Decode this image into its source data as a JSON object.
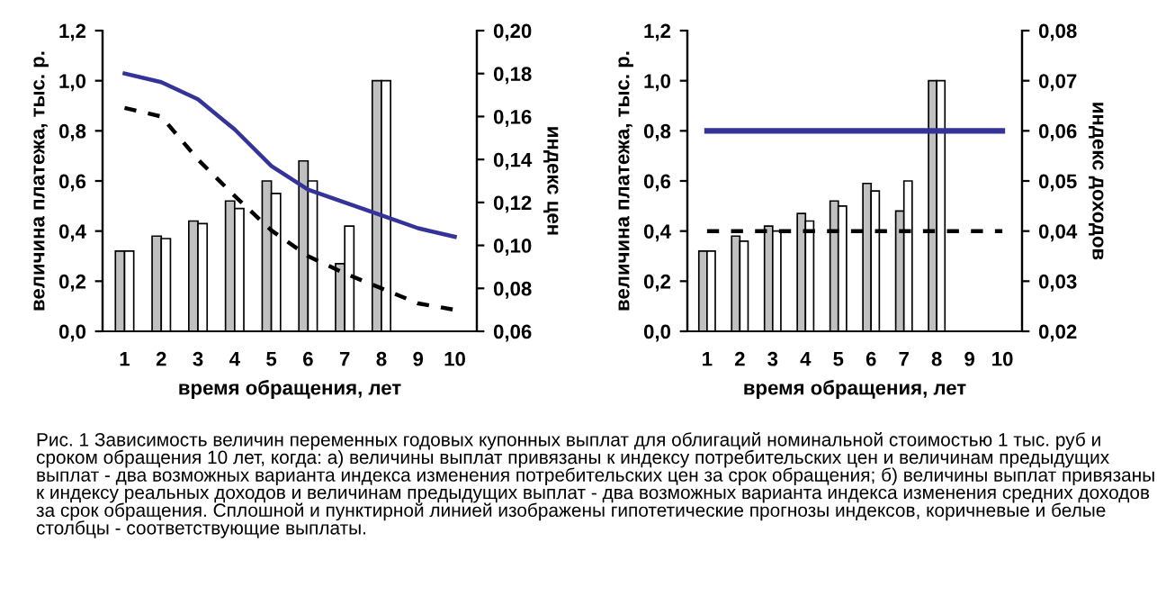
{
  "chart_data": [
    {
      "type": "bar",
      "categories": [
        "1",
        "2",
        "3",
        "4",
        "5",
        "6",
        "7",
        "8",
        "9",
        "10"
      ],
      "xlabel": "время обращения, лет",
      "ylabel": "величина платежа, тыс. р.",
      "y2label": "индекс цен",
      "series": [
        {
          "color": "#c0c0c0",
          "values": [
            0.32,
            0.38,
            0.44,
            0.52,
            0.6,
            0.68,
            0.27,
            1.0,
            null,
            null
          ]
        },
        {
          "color": "#ffffff",
          "values": [
            0.32,
            0.37,
            0.43,
            0.49,
            0.55,
            0.6,
            0.42,
            1.0,
            null,
            null
          ]
        },
        {
          "type": "line",
          "axis": "y2",
          "color": "#333399",
          "line_style": "solid",
          "values": [
            0.18,
            0.176,
            0.168,
            0.154,
            0.137,
            0.126,
            0.12,
            0.114,
            0.108,
            0.104
          ]
        },
        {
          "type": "line",
          "axis": "y2",
          "color": "#000000",
          "line_style": "dashed",
          "values": [
            0.164,
            0.16,
            0.14,
            0.123,
            0.107,
            0.095,
            0.087,
            0.08,
            0.073,
            0.07
          ]
        }
      ],
      "ylim": [
        0,
        1.2
      ],
      "yticks": [
        {
          "value": 0,
          "label": "0,0"
        },
        {
          "value": 0.2,
          "label": "0,2"
        },
        {
          "value": 0.4,
          "label": "0,4"
        },
        {
          "value": 0.6,
          "label": "0,6"
        },
        {
          "value": 0.8,
          "label": "0,8"
        },
        {
          "value": 1.0,
          "label": "1,0"
        },
        {
          "value": 1.2,
          "label": "1,2"
        }
      ],
      "y2lim": [
        0.06,
        0.2
      ],
      "y2ticks": [
        {
          "value": 0.06,
          "label": "0,06"
        },
        {
          "value": 0.08,
          "label": "0,08"
        },
        {
          "value": 0.1,
          "label": "0,10"
        },
        {
          "value": 0.12,
          "label": "0,12"
        },
        {
          "value": 0.14,
          "label": "0,14"
        },
        {
          "value": 0.16,
          "label": "0,16"
        },
        {
          "value": 0.18,
          "label": "0,18"
        },
        {
          "value": 0.2,
          "label": "0,20"
        }
      ],
      "grid": false,
      "legend": false,
      "annotations": [
        "Рис. 1 Зависимость величин переменных годовых купонных выплат для облигаций номинальной стоимостью 1 тыс. руб и сроком обращения 10 лет, когда: а) величины выплат привязаны к индексу потребительских цен и величинам предыдущих выплат - два возможных варианта индекса изменения потребительских цен за срок обращения; б) величины выплат привязаны к индексу реальных доходов и величинам предыдущих выплат - два возможных варианта индекса изменения средних доходов за срок обращения. Сплошной и пунктирной линией изображены гипотетические прогнозы индексов, коричневые и белые столбцы - соответствующие выплаты."
      ]
    },
    {
      "type": "bar",
      "categories": [
        "1",
        "2",
        "3",
        "4",
        "5",
        "6",
        "7",
        "8",
        "9",
        "10"
      ],
      "xlabel": "время обращения, лет",
      "ylabel": "величина платежа, тыс. р.",
      "y2label": "индекс доходов",
      "series": [
        {
          "color": "#c0c0c0",
          "values": [
            0.32,
            0.38,
            0.42,
            0.47,
            0.52,
            0.59,
            0.48,
            1.0,
            null,
            null
          ]
        },
        {
          "color": "#ffffff",
          "values": [
            0.32,
            0.36,
            0.4,
            0.44,
            0.5,
            0.56,
            0.6,
            1.0,
            null,
            null
          ]
        },
        {
          "type": "line",
          "axis": "y2",
          "color": "#333399",
          "line_style": "solid",
          "values": [
            0.06,
            0.06,
            0.06,
            0.06,
            0.06,
            0.06,
            0.06,
            0.06,
            0.06,
            0.06
          ]
        },
        {
          "type": "line",
          "axis": "y2",
          "color": "#000000",
          "line_style": "dashed",
          "values": [
            0.04,
            0.04,
            0.04,
            0.04,
            0.04,
            0.04,
            0.04,
            0.04,
            0.04,
            0.04
          ]
        }
      ],
      "ylim": [
        0,
        1.2
      ],
      "yticks": [
        {
          "value": 0,
          "label": "0,0"
        },
        {
          "value": 0.2,
          "label": "0,2"
        },
        {
          "value": 0.4,
          "label": "0,4"
        },
        {
          "value": 0.6,
          "label": "0,6"
        },
        {
          "value": 0.8,
          "label": "0,8"
        },
        {
          "value": 1.0,
          "label": "1,0"
        },
        {
          "value": 1.2,
          "label": "1,2"
        }
      ],
      "y2lim": [
        0.02,
        0.08
      ],
      "y2ticks": [
        {
          "value": 0.02,
          "label": "0,02"
        },
        {
          "value": 0.03,
          "label": "0,03"
        },
        {
          "value": 0.04,
          "label": "0,04"
        },
        {
          "value": 0.05,
          "label": "0,05"
        },
        {
          "value": 0.06,
          "label": "0,06"
        },
        {
          "value": 0.07,
          "label": "0,07"
        },
        {
          "value": 0.08,
          "label": "0,08"
        }
      ],
      "grid": false,
      "legend": false
    }
  ]
}
